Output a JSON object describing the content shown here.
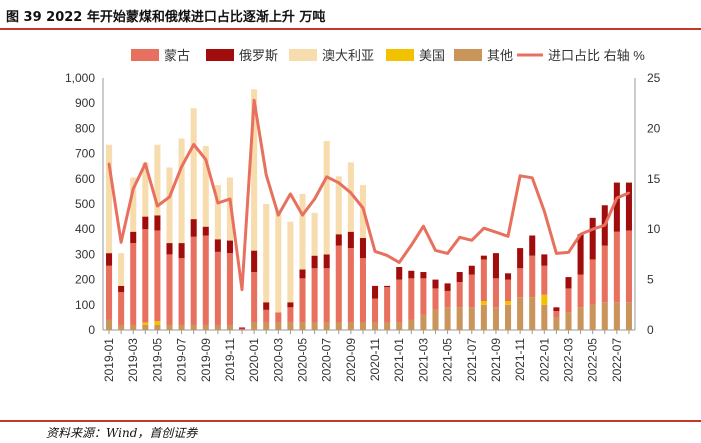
{
  "figure_title": "图 39 2022 年开始蒙煤和俄煤进口占比逐渐上升 万吨",
  "source": "资料来源：Wind，首创证券",
  "colors": {
    "mongolia": "#e8705e",
    "russia": "#a10d0d",
    "australia": "#f7dcad",
    "usa": "#f2c200",
    "other": "#c9955a",
    "share_line": "#e8705e",
    "rule": "#c0392b"
  },
  "chart_data": {
    "type": "bar",
    "stacked": true,
    "title": "",
    "xlabel": "",
    "ylabel_left": "",
    "ylabel_right": "",
    "ylim": [
      0,
      1000
    ],
    "y2lim": [
      0,
      25
    ],
    "y_ticks": [
      "0",
      "100",
      "200",
      "300",
      "400",
      "500",
      "600",
      "700",
      "800",
      "900",
      "1,000"
    ],
    "y2_ticks": [
      "0",
      "5",
      "10",
      "15",
      "20",
      "25"
    ],
    "categories": [
      "2019-01",
      "2019-02",
      "2019-03",
      "2019-04",
      "2019-05",
      "2019-06",
      "2019-07",
      "2019-08",
      "2019-09",
      "2019-10",
      "2019-11",
      "2019-12",
      "2020-01",
      "2020-02",
      "2020-03",
      "2020-04",
      "2020-05",
      "2020-06",
      "2020-07",
      "2020-08",
      "2020-09",
      "2020-10",
      "2020-11",
      "2020-12",
      "2021-01",
      "2021-02",
      "2021-03",
      "2021-04",
      "2021-05",
      "2021-06",
      "2021-07",
      "2021-08",
      "2021-09",
      "2021-10",
      "2021-11",
      "2021-12",
      "2022-01",
      "2022-02",
      "2022-03",
      "2022-04",
      "2022-05",
      "2022-06",
      "2022-07",
      "2022-08"
    ],
    "x_tick_labels": [
      "2019-01",
      "2019-03",
      "2019-05",
      "2019-07",
      "2019-09",
      "2019-11",
      "2020-01",
      "2020-03",
      "2020-05",
      "2020-07",
      "2020-09",
      "2020-11",
      "2021-01",
      "2021-03",
      "2021-05",
      "2021-07",
      "2021-09",
      "2021-11",
      "2022-01",
      "2022-03",
      "2022-05",
      "2022-07"
    ],
    "series": [
      {
        "name": "蒙古",
        "kind": "bar",
        "color_key": "mongolia",
        "values": [
          215,
          130,
          325,
          370,
          360,
          280,
          265,
          350,
          355,
          290,
          285,
          5,
          200,
          50,
          40,
          60,
          175,
          215,
          215,
          305,
          295,
          255,
          95,
          140,
          170,
          165,
          145,
          85,
          65,
          100,
          130,
          165,
          115,
          85,
          115,
          165,
          115,
          25,
          95,
          130,
          180,
          225,
          280,
          285
        ]
      },
      {
        "name": "俄罗斯",
        "kind": "bar",
        "color_key": "russia",
        "values": [
          50,
          25,
          45,
          50,
          60,
          45,
          60,
          70,
          35,
          50,
          50,
          5,
          85,
          30,
          0,
          20,
          35,
          50,
          55,
          45,
          65,
          80,
          50,
          5,
          50,
          30,
          25,
          35,
          30,
          40,
          35,
          15,
          100,
          25,
          80,
          80,
          45,
          15,
          45,
          160,
          165,
          160,
          195,
          190
        ]
      },
      {
        "name": "澳大利亚",
        "kind": "bar",
        "color_key": "australia",
        "values": [
          430,
          130,
          215,
          215,
          280,
          300,
          415,
          440,
          320,
          215,
          250,
          0,
          640,
          390,
          400,
          320,
          300,
          170,
          450,
          230,
          275,
          210,
          0,
          0,
          0,
          0,
          0,
          0,
          0,
          0,
          0,
          0,
          0,
          0,
          0,
          0,
          0,
          0,
          0,
          0,
          0,
          0,
          0,
          0
        ]
      },
      {
        "name": "美国",
        "kind": "bar",
        "color_key": "usa",
        "values": [
          0,
          0,
          0,
          10,
          15,
          0,
          0,
          0,
          0,
          0,
          0,
          0,
          0,
          0,
          0,
          0,
          0,
          0,
          0,
          0,
          0,
          0,
          0,
          0,
          0,
          0,
          0,
          0,
          0,
          0,
          0,
          15,
          0,
          15,
          0,
          0,
          40,
          0,
          0,
          0,
          0,
          0,
          0,
          0
        ]
      },
      {
        "name": "其他",
        "kind": "bar",
        "color_key": "other",
        "values": [
          40,
          20,
          20,
          20,
          20,
          20,
          20,
          20,
          20,
          20,
          20,
          0,
          30,
          30,
          30,
          30,
          30,
          30,
          30,
          30,
          30,
          30,
          30,
          30,
          30,
          40,
          60,
          80,
          90,
          90,
          90,
          100,
          90,
          100,
          130,
          130,
          100,
          50,
          70,
          90,
          100,
          110,
          110,
          110
        ]
      },
      {
        "name": "进口占比 右轴 %",
        "kind": "line",
        "axis": "right",
        "color_key": "share_line",
        "values": [
          16.5,
          8.7,
          14.0,
          16.5,
          12.3,
          13.2,
          16.2,
          18.4,
          16.9,
          12.6,
          13.0,
          4.0,
          22.8,
          15.4,
          11.4,
          13.5,
          11.4,
          13.0,
          15.2,
          14.6,
          13.6,
          12.1,
          7.8,
          7.4,
          6.7,
          8.4,
          10.3,
          7.9,
          7.6,
          9.2,
          8.9,
          10.1,
          9.7,
          9.3,
          15.3,
          15.1,
          11.8,
          7.6,
          7.7,
          9.5,
          10.0,
          10.4,
          13.1,
          13.6
        ]
      }
    ],
    "legend_position": "top"
  }
}
